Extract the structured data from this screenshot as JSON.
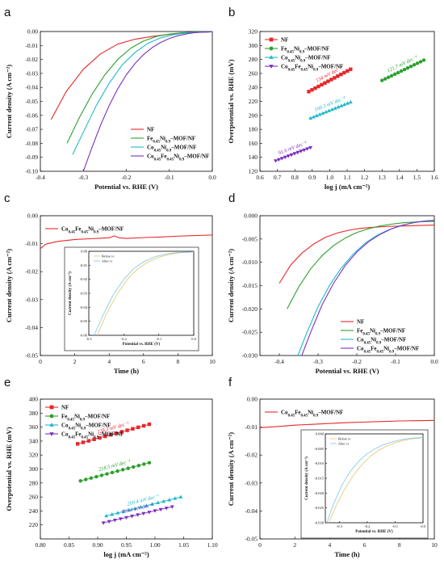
{
  "chart_data": [
    {
      "panel": "a",
      "type": "line",
      "xlabel": "Potential vs. RHE (V)",
      "ylabel": "Current density (A cm⁻²)",
      "xlim": [
        -0.4,
        0.0
      ],
      "ylim": [
        -0.1,
        0.0
      ],
      "xticks": [
        "-0.4",
        "-0.3",
        "-0.2",
        "-0.1",
        "0.0"
      ],
      "yticks": [
        "0.00",
        "-0.01",
        "-0.02",
        "-0.03",
        "-0.04",
        "-0.05",
        "-0.06",
        "-0.07",
        "-0.08",
        "-0.09",
        "-0.10"
      ],
      "legend_position": "lower-right",
      "series": [
        {
          "name": "NF",
          "color": "#e8282b",
          "x": [
            -0.375,
            -0.34,
            -0.3,
            -0.26,
            -0.22,
            -0.18,
            -0.14,
            -0.1,
            -0.06,
            -0.02,
            0.0
          ],
          "y": [
            -0.063,
            -0.043,
            -0.027,
            -0.016,
            -0.009,
            -0.0055,
            -0.0035,
            -0.002,
            -0.001,
            -0.0004,
            -0.0002
          ]
        },
        {
          "name": "Fe0.45Ni0.9-MOF/NF",
          "color": "#2ca02c",
          "x": [
            -0.338,
            -0.31,
            -0.28,
            -0.25,
            -0.22,
            -0.19,
            -0.16,
            -0.13,
            -0.1,
            -0.07,
            -0.04,
            0.0
          ],
          "y": [
            -0.08,
            -0.062,
            -0.045,
            -0.031,
            -0.02,
            -0.012,
            -0.0068,
            -0.0035,
            -0.0018,
            -0.0009,
            -0.0004,
            -0.0002
          ]
        },
        {
          "name": "Co0.45Ni0.9-MOF/NF",
          "color": "#1fb8c9",
          "x": [
            -0.325,
            -0.3,
            -0.27,
            -0.24,
            -0.21,
            -0.18,
            -0.15,
            -0.12,
            -0.09,
            -0.06,
            -0.03,
            0.0
          ],
          "y": [
            -0.088,
            -0.072,
            -0.053,
            -0.037,
            -0.024,
            -0.015,
            -0.0085,
            -0.0045,
            -0.0022,
            -0.001,
            -0.0005,
            -0.0002
          ]
        },
        {
          "name": "Co0.45Fe0.45Ni0.9-MOF/NF",
          "color": "#7b2fbe",
          "x": [
            -0.3,
            -0.28,
            -0.26,
            -0.24,
            -0.22,
            -0.2,
            -0.18,
            -0.16,
            -0.14,
            -0.12,
            -0.1,
            -0.08,
            -0.06,
            -0.04,
            0.0
          ],
          "y": [
            -0.1,
            -0.083,
            -0.067,
            -0.053,
            -0.041,
            -0.031,
            -0.023,
            -0.0165,
            -0.0115,
            -0.0078,
            -0.005,
            -0.003,
            -0.0017,
            -0.0008,
            -0.0002
          ]
        }
      ]
    },
    {
      "panel": "b",
      "type": "scatter",
      "xlabel": "log j (mA cm⁻²)",
      "ylabel": "Overpotential vs. RHE (mV)",
      "xlim": [
        0.6,
        1.6
      ],
      "ylim": [
        120,
        320
      ],
      "xticks": [
        "0.6",
        "0.7",
        "0.8",
        "0.9",
        "1.0",
        "1.1",
        "1.2",
        "1.3",
        "1.4",
        "1.5",
        "1.6"
      ],
      "yticks": [
        "120",
        "140",
        "160",
        "180",
        "200",
        "220",
        "240",
        "260",
        "280",
        "300",
        "320"
      ],
      "legend_position": "top-left",
      "series": [
        {
          "name": "NF",
          "color": "#e8282b",
          "marker": "square",
          "annotation": "134 mV dec⁻¹",
          "x_range": [
            0.88,
            1.12
          ],
          "y_range": [
            234,
            266
          ],
          "n": 14
        },
        {
          "name": "Fe0.45Ni0.9-MOF/NF",
          "color": "#2ca02c",
          "marker": "circle",
          "annotation": "121.7 mV dec⁻¹",
          "x_range": [
            1.3,
            1.54
          ],
          "y_range": [
            250,
            279
          ],
          "n": 14
        },
        {
          "name": "Co0.45Ni0.9-MOF/NF",
          "color": "#1fb8c9",
          "marker": "triangle-up",
          "annotation": "100.3 mV dec⁻¹",
          "x_range": [
            0.89,
            1.12
          ],
          "y_range": [
            196,
            219
          ],
          "n": 14
        },
        {
          "name": "Co0.45Fe0.45Ni0.9-MOF/NF",
          "color": "#7b2fbe",
          "marker": "triangle-down",
          "annotation": "91.6 mV dec⁻¹",
          "x_range": [
            0.69,
            0.89
          ],
          "y_range": [
            135,
            154
          ],
          "n": 12
        }
      ]
    },
    {
      "panel": "c",
      "type": "line",
      "xlabel": "Time (h)",
      "ylabel": "Current density (A cm⁻²)",
      "xlim": [
        0,
        10
      ],
      "ylim": [
        -0.05,
        0.0
      ],
      "xticks": [
        "0",
        "2",
        "4",
        "6",
        "8",
        "10"
      ],
      "yticks": [
        "0.00",
        "-0.01",
        "-0.02",
        "-0.03",
        "-0.04",
        "-0.05"
      ],
      "legend_position": "top-left",
      "series": [
        {
          "name": "Co0.45Fe0.45Ni0.9-MOF/NF",
          "color": "#e8282b",
          "x": [
            0,
            0.3,
            1,
            2,
            3,
            4,
            4.3,
            4.6,
            5,
            6,
            7,
            8,
            9,
            10
          ],
          "y": [
            -0.0118,
            -0.0102,
            -0.0092,
            -0.0085,
            -0.0082,
            -0.0079,
            -0.0072,
            -0.0079,
            -0.0081,
            -0.0078,
            -0.0076,
            -0.0073,
            -0.0071,
            -0.0069
          ]
        }
      ],
      "inset": {
        "xlabel": "Potential vs. RHE (V)",
        "ylabel": "Current density (A cm⁻²)",
        "xlim": [
          -0.3,
          0.0
        ],
        "ylim": [
          -0.06,
          0.0
        ],
        "xticks": [
          "-0.3",
          "-0.2",
          "-0.1",
          "0.0"
        ],
        "yticks": [
          "0.00",
          "-0.01",
          "-0.02",
          "-0.03",
          "-0.04",
          "-0.05",
          "-0.06"
        ],
        "series": [
          {
            "name": "Before i-t",
            "color": "#e3c46a",
            "x": [
              -0.276,
              -0.25,
              -0.22,
              -0.19,
              -0.16,
              -0.13,
              -0.1,
              -0.07,
              -0.04,
              0.0
            ],
            "y": [
              -0.06,
              -0.045,
              -0.031,
              -0.02,
              -0.0125,
              -0.0075,
              -0.0042,
              -0.0022,
              -0.0011,
              -0.0004
            ]
          },
          {
            "name": "After i-t",
            "color": "#7cc6e8",
            "x": [
              -0.285,
              -0.26,
              -0.23,
              -0.2,
              -0.17,
              -0.14,
              -0.11,
              -0.08,
              -0.05,
              0.0
            ],
            "y": [
              -0.06,
              -0.046,
              -0.031,
              -0.02,
              -0.012,
              -0.007,
              -0.0038,
              -0.002,
              -0.001,
              -0.0004
            ]
          }
        ]
      }
    },
    {
      "panel": "d",
      "type": "line",
      "xlabel": "Potential vs. RHE (V)",
      "ylabel": "Current density (A cm⁻²)",
      "xlim": [
        -0.45,
        0.0
      ],
      "ylim": [
        -0.03,
        0.0
      ],
      "xticks": [
        "-0.4",
        "-0.3",
        "-0.2",
        "-0.1",
        "0.0"
      ],
      "yticks": [
        "0.000",
        "-0.005",
        "-0.010",
        "-0.015",
        "-0.020",
        "-0.025",
        "-0.030"
      ],
      "legend_position": "lower-right",
      "series": [
        {
          "name": "NF",
          "color": "#e8282b",
          "x": [
            -0.4,
            -0.37,
            -0.34,
            -0.31,
            -0.28,
            -0.25,
            -0.22,
            -0.19,
            -0.16,
            -0.12,
            -0.08,
            -0.04,
            0.0
          ],
          "y": [
            -0.0145,
            -0.0105,
            -0.0079,
            -0.006,
            -0.0046,
            -0.0037,
            -0.0031,
            -0.0027,
            -0.0025,
            -0.0023,
            -0.0022,
            -0.0021,
            -0.002
          ]
        },
        {
          "name": "Fe0.45Ni0.9-MOF/NF",
          "color": "#2ca02c",
          "x": [
            -0.38,
            -0.35,
            -0.32,
            -0.29,
            -0.26,
            -0.23,
            -0.2,
            -0.17,
            -0.14,
            -0.11,
            -0.08,
            -0.04,
            0.0
          ],
          "y": [
            -0.02,
            -0.0153,
            -0.0115,
            -0.0086,
            -0.0064,
            -0.0048,
            -0.0036,
            -0.0028,
            -0.0022,
            -0.0018,
            -0.0015,
            -0.0013,
            -0.0012
          ]
        },
        {
          "name": "Co0.45Ni0.9-MOF/NF",
          "color": "#1fb8c9",
          "x": [
            -0.352,
            -0.33,
            -0.3,
            -0.27,
            -0.24,
            -0.21,
            -0.18,
            -0.15,
            -0.12,
            -0.09,
            -0.06,
            -0.03,
            0.0
          ],
          "y": [
            -0.03,
            -0.0253,
            -0.0195,
            -0.0149,
            -0.0112,
            -0.0083,
            -0.006,
            -0.0043,
            -0.0031,
            -0.0022,
            -0.0016,
            -0.0012,
            -0.001
          ]
        },
        {
          "name": "Co0.45Fe0.45Ni0.9-MOF/NF",
          "color": "#7b2fbe",
          "x": [
            -0.342,
            -0.32,
            -0.29,
            -0.26,
            -0.23,
            -0.2,
            -0.17,
            -0.14,
            -0.11,
            -0.08,
            -0.05,
            -0.02,
            0.0
          ],
          "y": [
            -0.03,
            -0.0252,
            -0.0192,
            -0.0145,
            -0.0107,
            -0.0078,
            -0.0056,
            -0.004,
            -0.0028,
            -0.002,
            -0.0014,
            -0.0011,
            -0.001
          ]
        }
      ]
    },
    {
      "panel": "e",
      "type": "scatter",
      "xlabel": "log j (mA cm⁻²)",
      "ylabel": "Overpotential vs. RHE (mV)",
      "xlim": [
        0.8,
        1.1
      ],
      "ylim": [
        200,
        400
      ],
      "xticks": [
        "0.80",
        "0.85",
        "0.90",
        "0.95",
        "1.00",
        "1.05",
        "1.10"
      ],
      "yticks": [
        "220",
        "240",
        "260",
        "280",
        "300",
        "320",
        "340",
        "360",
        "380",
        "400"
      ],
      "legend_position": "top-left",
      "series": [
        {
          "name": "NF",
          "color": "#e8282b",
          "marker": "square",
          "annotation": "228.3 mV dec⁻¹",
          "x_range": [
            0.865,
            0.99
          ],
          "y_range": [
            336,
            364
          ],
          "n": 14
        },
        {
          "name": "Fe0.45Ni0.9-MOF/NF",
          "color": "#2ca02c",
          "marker": "circle",
          "annotation": "218.5 mV dec⁻¹",
          "x_range": [
            0.87,
            0.99
          ],
          "y_range": [
            283,
            309
          ],
          "n": 14
        },
        {
          "name": "Co0.45Ni0.9-MOF/NF",
          "color": "#1fb8c9",
          "marker": "triangle-up",
          "annotation": "209.4 mV dec⁻¹",
          "x_range": [
            0.915,
            1.045
          ],
          "y_range": [
            233,
            260
          ],
          "n": 14
        },
        {
          "name": "Co0.45Fe0.45Ni0.9-MOF/NF",
          "color": "#7b2fbe",
          "marker": "triangle-down",
          "annotation": "193.4 mV dec⁻¹",
          "x_range": [
            0.91,
            1.03
          ],
          "y_range": [
            223,
            246
          ],
          "n": 13
        }
      ]
    },
    {
      "panel": "f",
      "type": "line",
      "xlabel": "Time (h)",
      "ylabel": "Current density (A cm⁻²)",
      "xlim": [
        0,
        10
      ],
      "ylim": [
        -0.05,
        0.0
      ],
      "xticks": [
        "0",
        "2",
        "4",
        "6",
        "8",
        "10"
      ],
      "yticks": [
        "0.00",
        "-0.01",
        "-0.02",
        "-0.03",
        "-0.04",
        "-0.05"
      ],
      "legend_position": "top-left",
      "series": [
        {
          "name": "Co0.45Fe0.45Ni0.9-MOF/NF",
          "color": "#e8282b",
          "x": [
            0,
            1,
            2,
            3,
            4,
            5,
            6,
            7,
            8,
            9,
            10
          ],
          "y": [
            -0.0102,
            -0.0098,
            -0.0093,
            -0.009,
            -0.0087,
            -0.0084,
            -0.0082,
            -0.008,
            -0.0078,
            -0.0077,
            -0.0076
          ]
        }
      ],
      "inset": {
        "xlabel": "Potential vs. RHE (V)",
        "ylabel": "Current density (A cm⁻²)",
        "xlim": [
          -0.35,
          0.0
        ],
        "ylim": [
          -0.03,
          0.0
        ],
        "xticks": [
          "-0.3",
          "-0.2",
          "-0.1",
          "0.0"
        ],
        "yticks": [
          "0.000",
          "-0.005",
          "-0.010",
          "-0.015",
          "-0.020",
          "-0.025",
          "-0.030"
        ],
        "series": [
          {
            "name": "Before i-t",
            "color": "#e3c46a",
            "x": [
              -0.338,
              -0.31,
              -0.28,
              -0.25,
              -0.22,
              -0.19,
              -0.16,
              -0.13,
              -0.1,
              -0.07,
              -0.04,
              0.0
            ],
            "y": [
              -0.03,
              -0.024,
              -0.0185,
              -0.014,
              -0.0105,
              -0.0077,
              -0.0056,
              -0.0041,
              -0.003,
              -0.0022,
              -0.0017,
              -0.0013
            ]
          },
          {
            "name": "After i-t",
            "color": "#7cc6e8",
            "x": [
              -0.345,
              -0.32,
              -0.29,
              -0.26,
              -0.23,
              -0.2,
              -0.17,
              -0.14,
              -0.11,
              -0.08,
              -0.05,
              0.0
            ],
            "y": [
              -0.03,
              -0.0235,
              -0.0172,
              -0.0126,
              -0.0092,
              -0.0067,
              -0.0049,
              -0.0036,
              -0.0027,
              -0.002,
              -0.0015,
              -0.0012
            ]
          }
        ]
      }
    }
  ]
}
